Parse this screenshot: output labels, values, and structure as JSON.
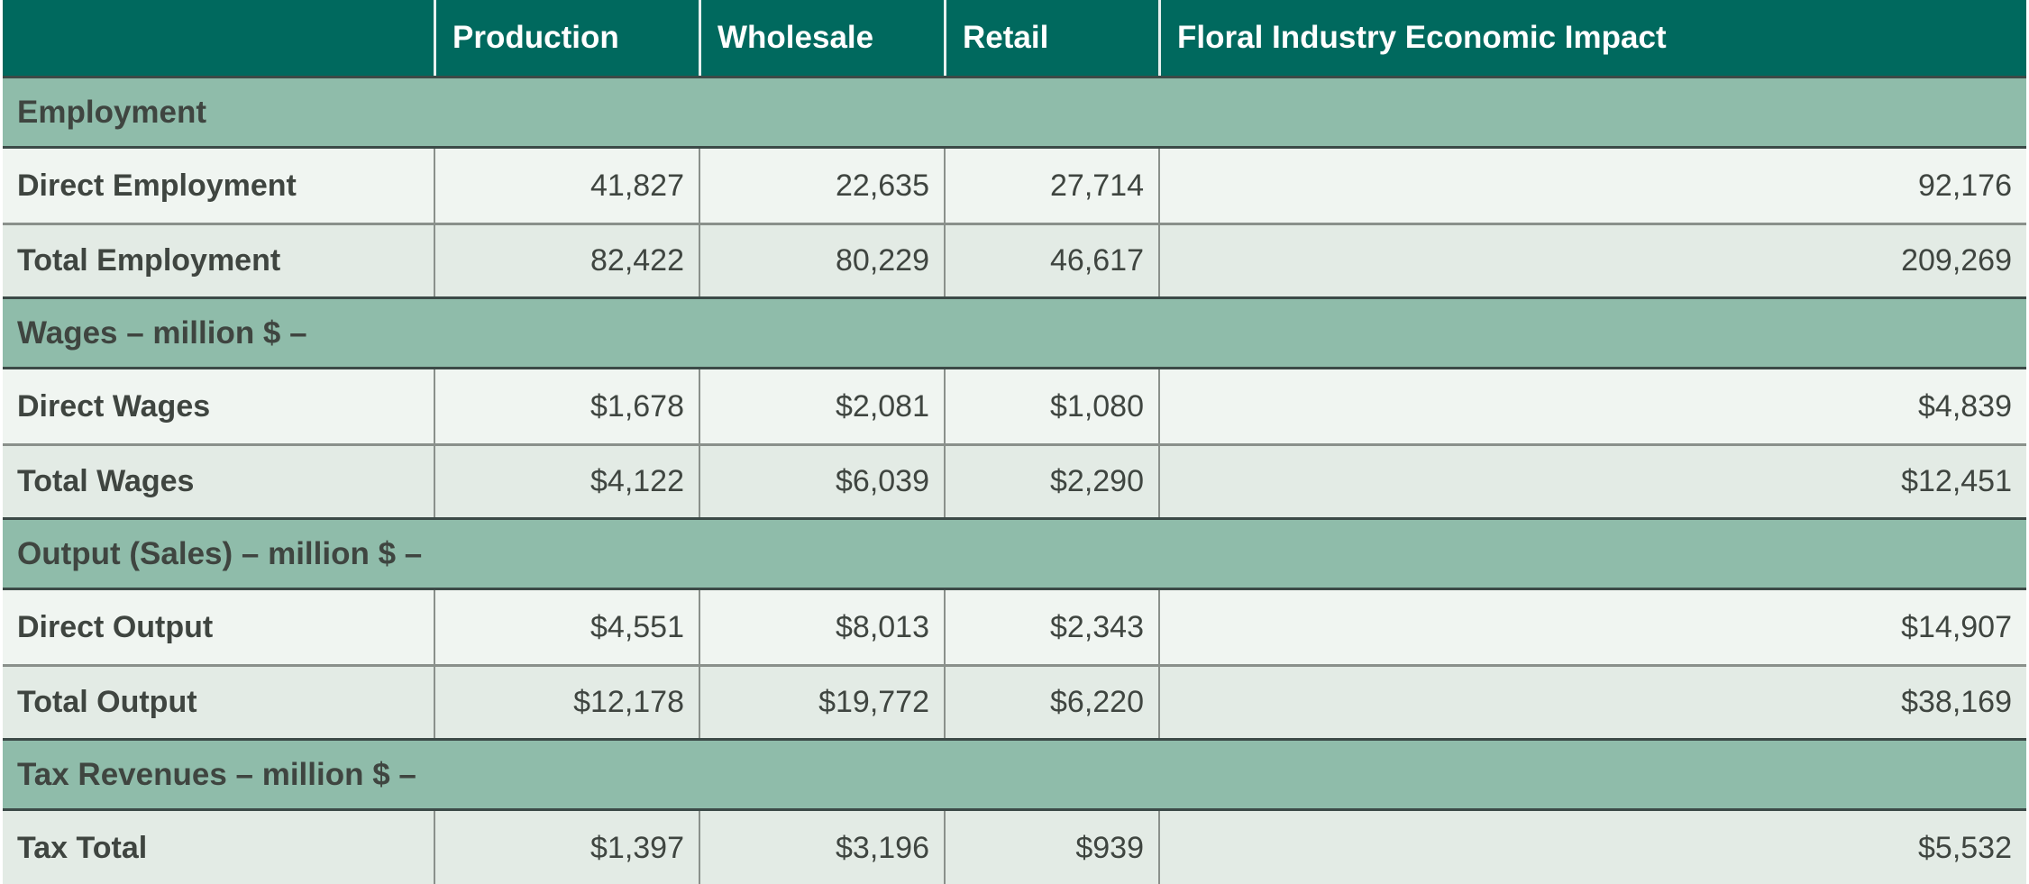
{
  "colors": {
    "header_bg": "#00695E",
    "header_text": "#FFFFFF",
    "band_bg": "#8FBCAA",
    "row_light": "#F0F5F1",
    "row_dark": "#E3EBE5",
    "border_dark": "#3C4A47",
    "border_gray": "#8A908B",
    "text_dark": "#3F4540"
  },
  "header": {
    "production": "Production",
    "wholesale": "Wholesale",
    "retail": "Retail",
    "impact_title": "Floral Industry Economic Impact"
  },
  "sections": [
    {
      "title": "Employment",
      "rows": [
        {
          "label": "Direct Employment",
          "production": "41,827",
          "wholesale": "22,635",
          "retail": "27,714",
          "total": "92,176"
        },
        {
          "label": "Total Employment",
          "production": "82,422",
          "wholesale": "80,229",
          "retail": "46,617",
          "total": "209,269"
        }
      ]
    },
    {
      "title": "Wages – million $ –",
      "rows": [
        {
          "label": "Direct Wages",
          "production": "$1,678",
          "wholesale": "$2,081",
          "retail": "$1,080",
          "total": "$4,839"
        },
        {
          "label": "Total Wages",
          "production": "$4,122",
          "wholesale": "$6,039",
          "retail": "$2,290",
          "total": "$12,451"
        }
      ]
    },
    {
      "title": "Output (Sales) – million $ –",
      "rows": [
        {
          "label": "Direct Output",
          "production": "$4,551",
          "wholesale": "$8,013",
          "retail": "$2,343",
          "total": "$14,907"
        },
        {
          "label": "Total Output",
          "production": "$12,178",
          "wholesale": "$19,772",
          "retail": "$6,220",
          "total": "$38,169"
        }
      ]
    },
    {
      "title": "Tax Revenues – million $ –",
      "rows": [
        {
          "label": "Tax Total",
          "production": "$1,397",
          "wholesale": "$3,196",
          "retail": "$939",
          "total": "$5,532"
        }
      ]
    }
  ],
  "chart_data": {
    "type": "table",
    "title": "Floral Industry Economic Impact",
    "columns": [
      "",
      "Production",
      "Wholesale",
      "Retail",
      "Floral Industry Economic Impact"
    ],
    "sections": [
      {
        "section": "Employment",
        "rows": [
          [
            "Direct Employment",
            41827,
            22635,
            27714,
            92176
          ],
          [
            "Total Employment",
            82422,
            80229,
            46617,
            209269
          ]
        ]
      },
      {
        "section": "Wages – million $ –",
        "rows": [
          [
            "Direct Wages",
            1678,
            2081,
            1080,
            4839
          ],
          [
            "Total Wages",
            4122,
            6039,
            2290,
            12451
          ]
        ]
      },
      {
        "section": "Output (Sales) – million $ –",
        "rows": [
          [
            "Direct Output",
            4551,
            8013,
            2343,
            14907
          ],
          [
            "Total Output",
            12178,
            19772,
            6220,
            38169
          ]
        ]
      },
      {
        "section": "Tax Revenues – million $ –",
        "rows": [
          [
            "Tax Total",
            1397,
            3196,
            939,
            5532
          ]
        ]
      }
    ]
  }
}
